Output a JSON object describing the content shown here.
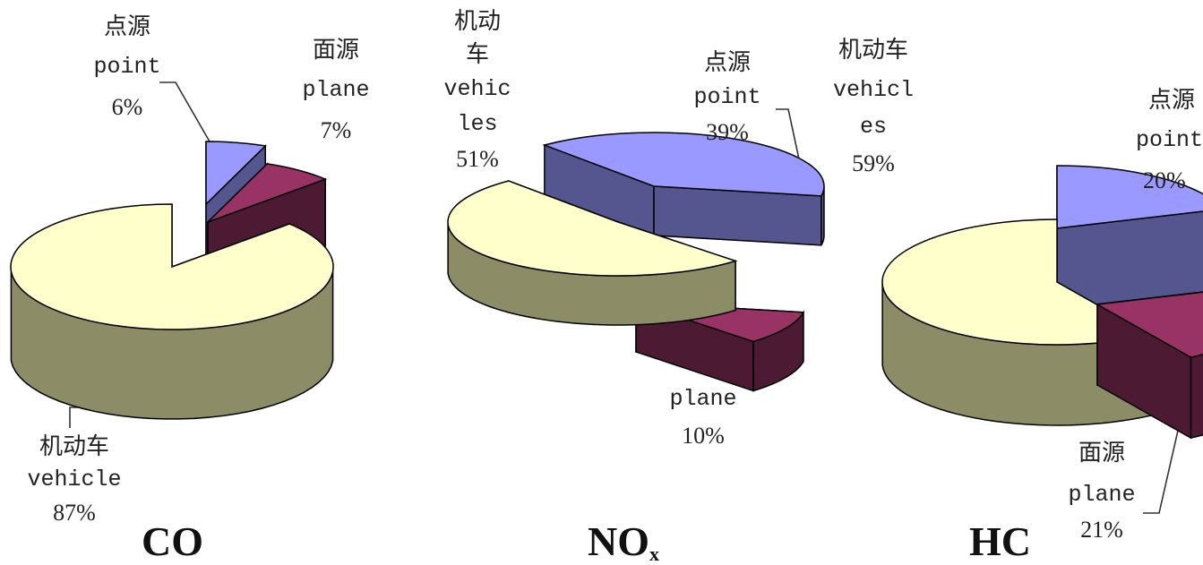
{
  "chart_data": [
    {
      "type": "pie",
      "title": "CO",
      "slices": [
        {
          "cn": "点源",
          "en": "point",
          "value": 6,
          "label": "6%",
          "color": "#9999ff"
        },
        {
          "cn": "面源",
          "en": "plane",
          "value": 7,
          "label": "7%",
          "color": "#993366"
        },
        {
          "cn": "机动车",
          "en": "vehicle",
          "value": 87,
          "label": "87%",
          "color": "#ffffcc"
        }
      ]
    },
    {
      "type": "pie",
      "title": "NO",
      "title_sub": "x",
      "slices": [
        {
          "cn": "点源",
          "en": "point",
          "value": 39,
          "label": "39%",
          "color": "#9999ff"
        },
        {
          "cn": "",
          "en": "plane",
          "value": 10,
          "label": "10%",
          "color": "#993366"
        },
        {
          "cn": "机动车",
          "en": "vehicles",
          "value": 51,
          "label": "51%",
          "color": "#ffffcc",
          "cn_lines": [
            "机动",
            "车"
          ],
          "en_lines": [
            "vehic",
            "les"
          ]
        }
      ]
    },
    {
      "type": "pie",
      "title": "HC",
      "slices": [
        {
          "cn": "点源",
          "en": "point",
          "value": 20,
          "label": "20%",
          "color": "#9999ff"
        },
        {
          "cn": "面源",
          "en": "plane",
          "value": 21,
          "label": "21%",
          "color": "#993366"
        },
        {
          "cn": "机动车",
          "en": "vehicles",
          "value": 59,
          "label": "59%",
          "color": "#ffffcc",
          "en_lines": [
            "vehicl",
            "es"
          ]
        }
      ]
    }
  ]
}
